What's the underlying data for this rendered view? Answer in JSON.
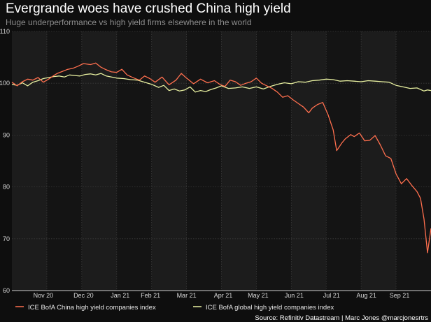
{
  "chart_data": {
    "type": "line",
    "title": "Evergrande woes have crushed China high yield",
    "subtitle": "Huge underperformance vs high yield firms elsewhere in the world",
    "xlabel": "",
    "ylabel": "",
    "ylim": [
      60,
      110
    ],
    "yticks": [
      60,
      70,
      80,
      90,
      100,
      110
    ],
    "xlim": [
      0,
      12
    ],
    "x_tick_labels": [
      "Nov 20",
      "Dec 20",
      "Jan 21",
      "Feb 21",
      "Mar 21",
      "Apr 21",
      "May 21",
      "Jun 21",
      "Jul 21",
      "Aug 21",
      "Sep 21"
    ],
    "x_tick_positions": [
      0.9,
      2.05,
      3.1,
      3.97,
      5.0,
      6.05,
      7.05,
      8.08,
      9.15,
      10.15,
      11.1
    ],
    "grid": true,
    "legend_position": "bottom",
    "series": [
      {
        "name": "ICE BofA China high yield companies index",
        "color": "#ff6f4e",
        "x": [
          0.0,
          0.15,
          0.3,
          0.45,
          0.6,
          0.75,
          0.9,
          1.05,
          1.2,
          1.3,
          1.45,
          1.6,
          1.75,
          1.9,
          2.05,
          2.25,
          2.4,
          2.55,
          2.7,
          2.85,
          3.0,
          3.15,
          3.3,
          3.5,
          3.65,
          3.8,
          3.95,
          4.1,
          4.3,
          4.5,
          4.7,
          4.85,
          5.0,
          5.2,
          5.4,
          5.6,
          5.8,
          5.95,
          6.1,
          6.25,
          6.4,
          6.55,
          6.7,
          6.85,
          7.0,
          7.15,
          7.3,
          7.45,
          7.6,
          7.75,
          7.9,
          8.05,
          8.2,
          8.35,
          8.5,
          8.6,
          8.75,
          8.9,
          9.05,
          9.2,
          9.3,
          9.45,
          9.55,
          9.7,
          9.8,
          9.95,
          10.1,
          10.25,
          10.4,
          10.55,
          10.7,
          10.85,
          11.0,
          11.15,
          11.3,
          11.45,
          11.6,
          11.7,
          11.8,
          11.9,
          12.0
        ],
        "values": [
          100.2,
          99.5,
          100.3,
          100.8,
          100.6,
          101.1,
          100.2,
          100.8,
          101.5,
          101.9,
          102.3,
          102.7,
          102.9,
          103.3,
          103.8,
          103.6,
          103.9,
          103.1,
          102.6,
          102.2,
          102.1,
          102.7,
          101.6,
          101.0,
          100.6,
          101.4,
          100.9,
          100.2,
          101.2,
          99.7,
          100.6,
          101.9,
          101.0,
          99.9,
          100.8,
          100.1,
          100.5,
          99.8,
          99.4,
          100.6,
          100.3,
          99.6,
          100.0,
          100.3,
          101.0,
          100.0,
          99.5,
          99.0,
          98.3,
          97.3,
          97.6,
          96.8,
          96.1,
          95.4,
          94.3,
          95.2,
          95.9,
          96.3,
          94.0,
          91.0,
          87.0,
          88.5,
          89.3,
          90.1,
          89.7,
          90.4,
          88.9,
          89.0,
          89.9,
          88.1,
          86.0,
          85.5,
          82.5,
          80.6,
          81.6,
          80.3,
          79.1,
          77.8,
          73.8,
          67.3,
          72.0
        ]
      },
      {
        "name": "ICE BofA global high yield companies index",
        "color": "#e8f0a0",
        "x": [
          0.0,
          0.15,
          0.3,
          0.45,
          0.6,
          0.75,
          0.9,
          1.05,
          1.2,
          1.35,
          1.5,
          1.65,
          1.8,
          1.95,
          2.1,
          2.25,
          2.4,
          2.55,
          2.7,
          2.85,
          3.0,
          3.2,
          3.4,
          3.6,
          3.8,
          4.0,
          4.2,
          4.35,
          4.5,
          4.65,
          4.8,
          4.95,
          5.1,
          5.25,
          5.4,
          5.55,
          5.7,
          5.85,
          6.0,
          6.2,
          6.4,
          6.6,
          6.8,
          7.0,
          7.2,
          7.4,
          7.6,
          7.8,
          8.0,
          8.2,
          8.4,
          8.6,
          8.8,
          9.0,
          9.2,
          9.4,
          9.6,
          9.8,
          10.0,
          10.2,
          10.4,
          10.6,
          10.8,
          11.0,
          11.2,
          11.4,
          11.6,
          11.8,
          11.9,
          12.0
        ],
        "values": [
          99.8,
          99.6,
          100.1,
          99.5,
          100.2,
          100.5,
          100.9,
          101.1,
          101.3,
          101.4,
          101.2,
          101.6,
          101.5,
          101.4,
          101.7,
          101.8,
          101.6,
          101.9,
          101.4,
          101.2,
          101.0,
          100.9,
          100.7,
          100.6,
          100.2,
          99.8,
          99.2,
          99.6,
          98.6,
          98.9,
          98.5,
          98.7,
          99.3,
          98.3,
          98.6,
          98.4,
          98.8,
          99.1,
          99.5,
          99.0,
          99.1,
          99.3,
          99.0,
          99.3,
          98.9,
          99.4,
          99.8,
          100.1,
          99.9,
          100.3,
          100.2,
          100.5,
          100.6,
          100.8,
          100.7,
          100.4,
          100.5,
          100.4,
          100.3,
          100.5,
          100.4,
          100.3,
          100.2,
          99.6,
          99.3,
          99.0,
          99.1,
          98.5,
          98.7,
          98.6
        ]
      }
    ],
    "source": "Source: Refinitiv Datastream | Marc Jones @marcjonesrtrs"
  }
}
